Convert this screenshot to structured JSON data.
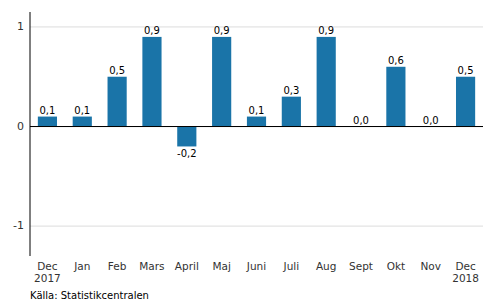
{
  "chart_data": {
    "type": "bar",
    "categories": [
      "Dec\n2017",
      "Jan",
      "Feb",
      "Mars",
      "April",
      "Maj",
      "Juni",
      "Juli",
      "Aug",
      "Sept",
      "Okt",
      "Nov",
      "Dec\n2018"
    ],
    "values": [
      0.1,
      0.1,
      0.5,
      0.9,
      -0.2,
      0.9,
      0.1,
      0.3,
      0.9,
      0.0,
      0.6,
      0.0,
      0.5
    ],
    "value_labels": [
      "0,1",
      "0,1",
      "0,5",
      "0,9",
      "-0,2",
      "0,9",
      "0,1",
      "0,3",
      "0,9",
      "0,0",
      "0,6",
      "0,0",
      "0,5"
    ],
    "data_labels": true,
    "color": "#1a74a8",
    "ylim": [
      -1.3,
      1.15
    ],
    "yticks": [
      -1,
      0,
      1
    ],
    "grid": true,
    "annotations": [
      "Källa: Statistikcentralen"
    ]
  }
}
